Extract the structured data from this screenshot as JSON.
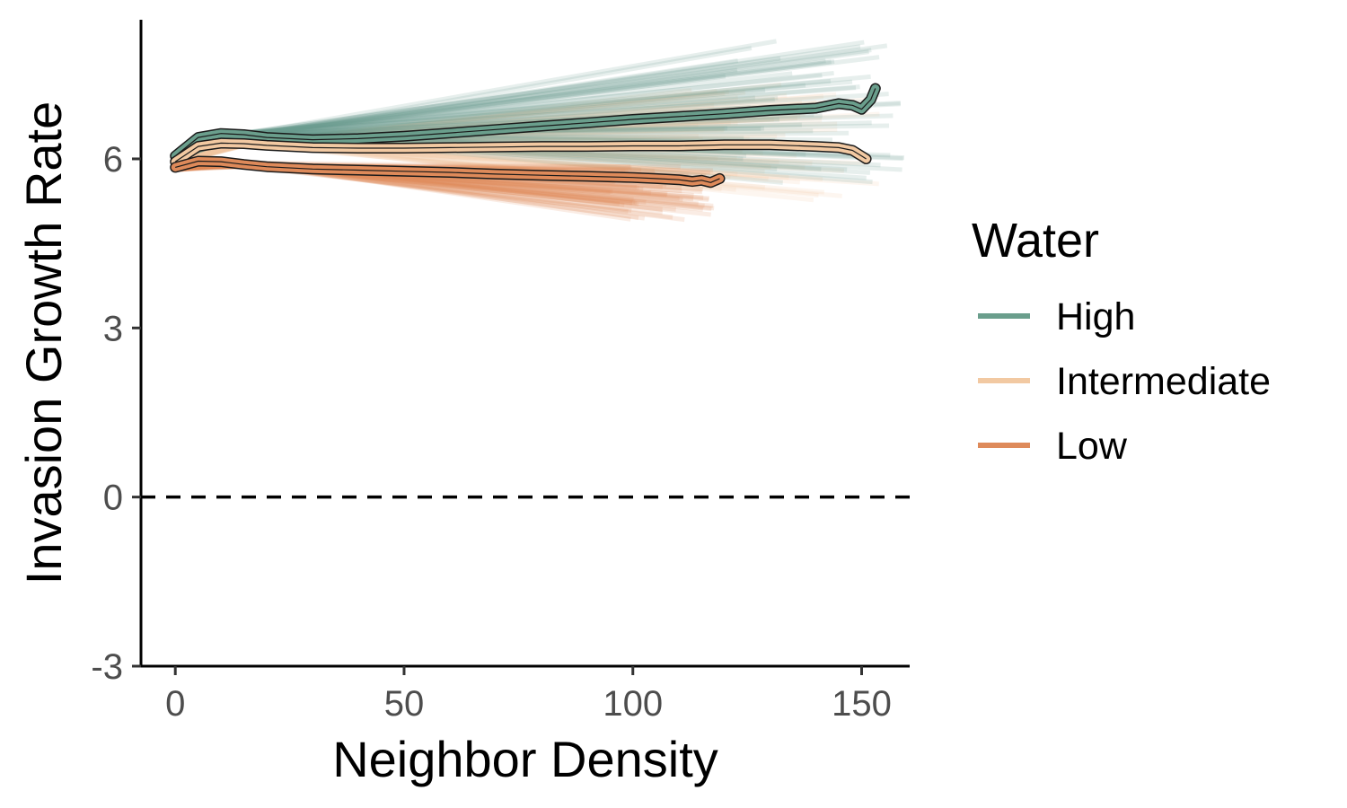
{
  "chart_data": {
    "type": "line",
    "title": "",
    "xlabel": "Neighbor Density",
    "ylabel": "Invasion Growth Rate",
    "xlim": [
      -7.5,
      160.5
    ],
    "ylim": [
      -3.0,
      8.5
    ],
    "x_ticks": [
      0,
      50,
      100,
      150
    ],
    "y_ticks": [
      -3,
      0,
      3,
      6
    ],
    "x_tick_labels": [
      "0",
      "50",
      "100",
      "150"
    ],
    "y_tick_labels": [
      "-3",
      "0",
      "3",
      "6"
    ],
    "reference_line": {
      "y": 0,
      "style": "dashed"
    },
    "grid": false,
    "legend": {
      "title": "Water",
      "position": "right"
    },
    "series": [
      {
        "name": "High",
        "color": "#6a9e8c",
        "x": [
          0,
          5,
          10,
          15,
          20,
          30,
          40,
          50,
          60,
          70,
          80,
          90,
          100,
          110,
          120,
          130,
          140,
          145,
          148,
          150,
          152,
          153
        ],
        "y": [
          6.05,
          6.38,
          6.45,
          6.43,
          6.38,
          6.34,
          6.36,
          6.4,
          6.46,
          6.52,
          6.58,
          6.64,
          6.7,
          6.75,
          6.8,
          6.86,
          6.9,
          6.98,
          6.95,
          6.88,
          7.05,
          7.25
        ],
        "draws_x_end": [
          120,
          160
        ],
        "draws_y_end": [
          5.6,
          8.1
        ]
      },
      {
        "name": "Intermediate",
        "color": "#f2c9a2",
        "x": [
          0,
          5,
          10,
          15,
          20,
          30,
          40,
          50,
          60,
          70,
          80,
          90,
          100,
          110,
          120,
          130,
          140,
          145,
          148,
          150,
          151
        ],
        "y": [
          5.95,
          6.22,
          6.28,
          6.27,
          6.24,
          6.2,
          6.19,
          6.19,
          6.2,
          6.21,
          6.22,
          6.22,
          6.23,
          6.23,
          6.25,
          6.25,
          6.22,
          6.2,
          6.15,
          6.05,
          6.0
        ],
        "draws_x_end": [
          110,
          155
        ],
        "draws_y_end": [
          5.3,
          7.3
        ]
      },
      {
        "name": "Low",
        "color": "#de8a5a",
        "x": [
          0,
          5,
          10,
          15,
          20,
          30,
          40,
          50,
          60,
          70,
          80,
          90,
          100,
          105,
          110,
          113,
          115,
          117,
          119
        ],
        "y": [
          5.85,
          5.96,
          5.95,
          5.9,
          5.86,
          5.82,
          5.8,
          5.78,
          5.76,
          5.73,
          5.71,
          5.69,
          5.67,
          5.65,
          5.63,
          5.6,
          5.62,
          5.58,
          5.65
        ],
        "draws_x_end": [
          95,
          118
        ],
        "draws_y_end": [
          4.95,
          5.85
        ]
      }
    ]
  }
}
